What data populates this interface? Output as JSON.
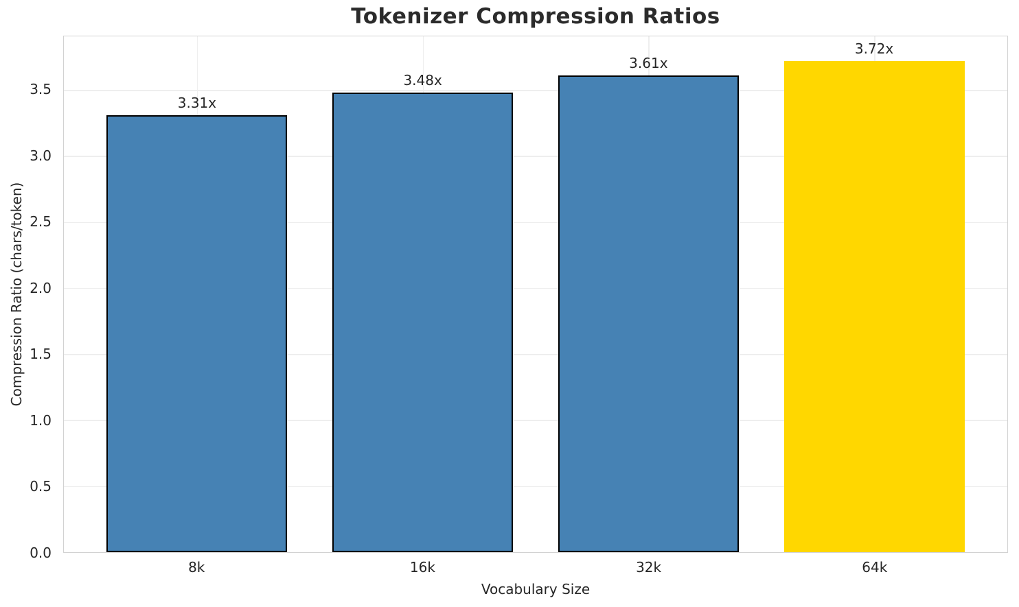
{
  "chart_data": {
    "type": "bar",
    "title": "Tokenizer Compression Ratios",
    "xlabel": "Vocabulary Size",
    "ylabel": "Compression Ratio (chars/token)",
    "categories": [
      "8k",
      "16k",
      "32k",
      "64k"
    ],
    "values": [
      3.31,
      3.48,
      3.61,
      3.72
    ],
    "bar_labels": [
      "3.31x",
      "3.48x",
      "3.61x",
      "3.72x"
    ],
    "yticks": [
      0.0,
      0.5,
      1.0,
      1.5,
      2.0,
      2.5,
      3.0,
      3.5
    ],
    "ytick_labels": [
      "0.0",
      "0.5",
      "1.0",
      "1.5",
      "2.0",
      "2.5",
      "3.0",
      "3.5"
    ],
    "ylim": [
      0,
      3.906
    ],
    "xlim": [
      -0.59,
      3.59
    ],
    "bar_width_units": 0.8,
    "grid": true,
    "legend": null,
    "colors": {
      "bar": "#4682B4",
      "highlight_bar": "#FFD700",
      "bar_edge": "#000000",
      "grid": "#eeeeee",
      "spine": "#d2d2d2",
      "text": "#262626"
    },
    "highlight_index": 3
  }
}
